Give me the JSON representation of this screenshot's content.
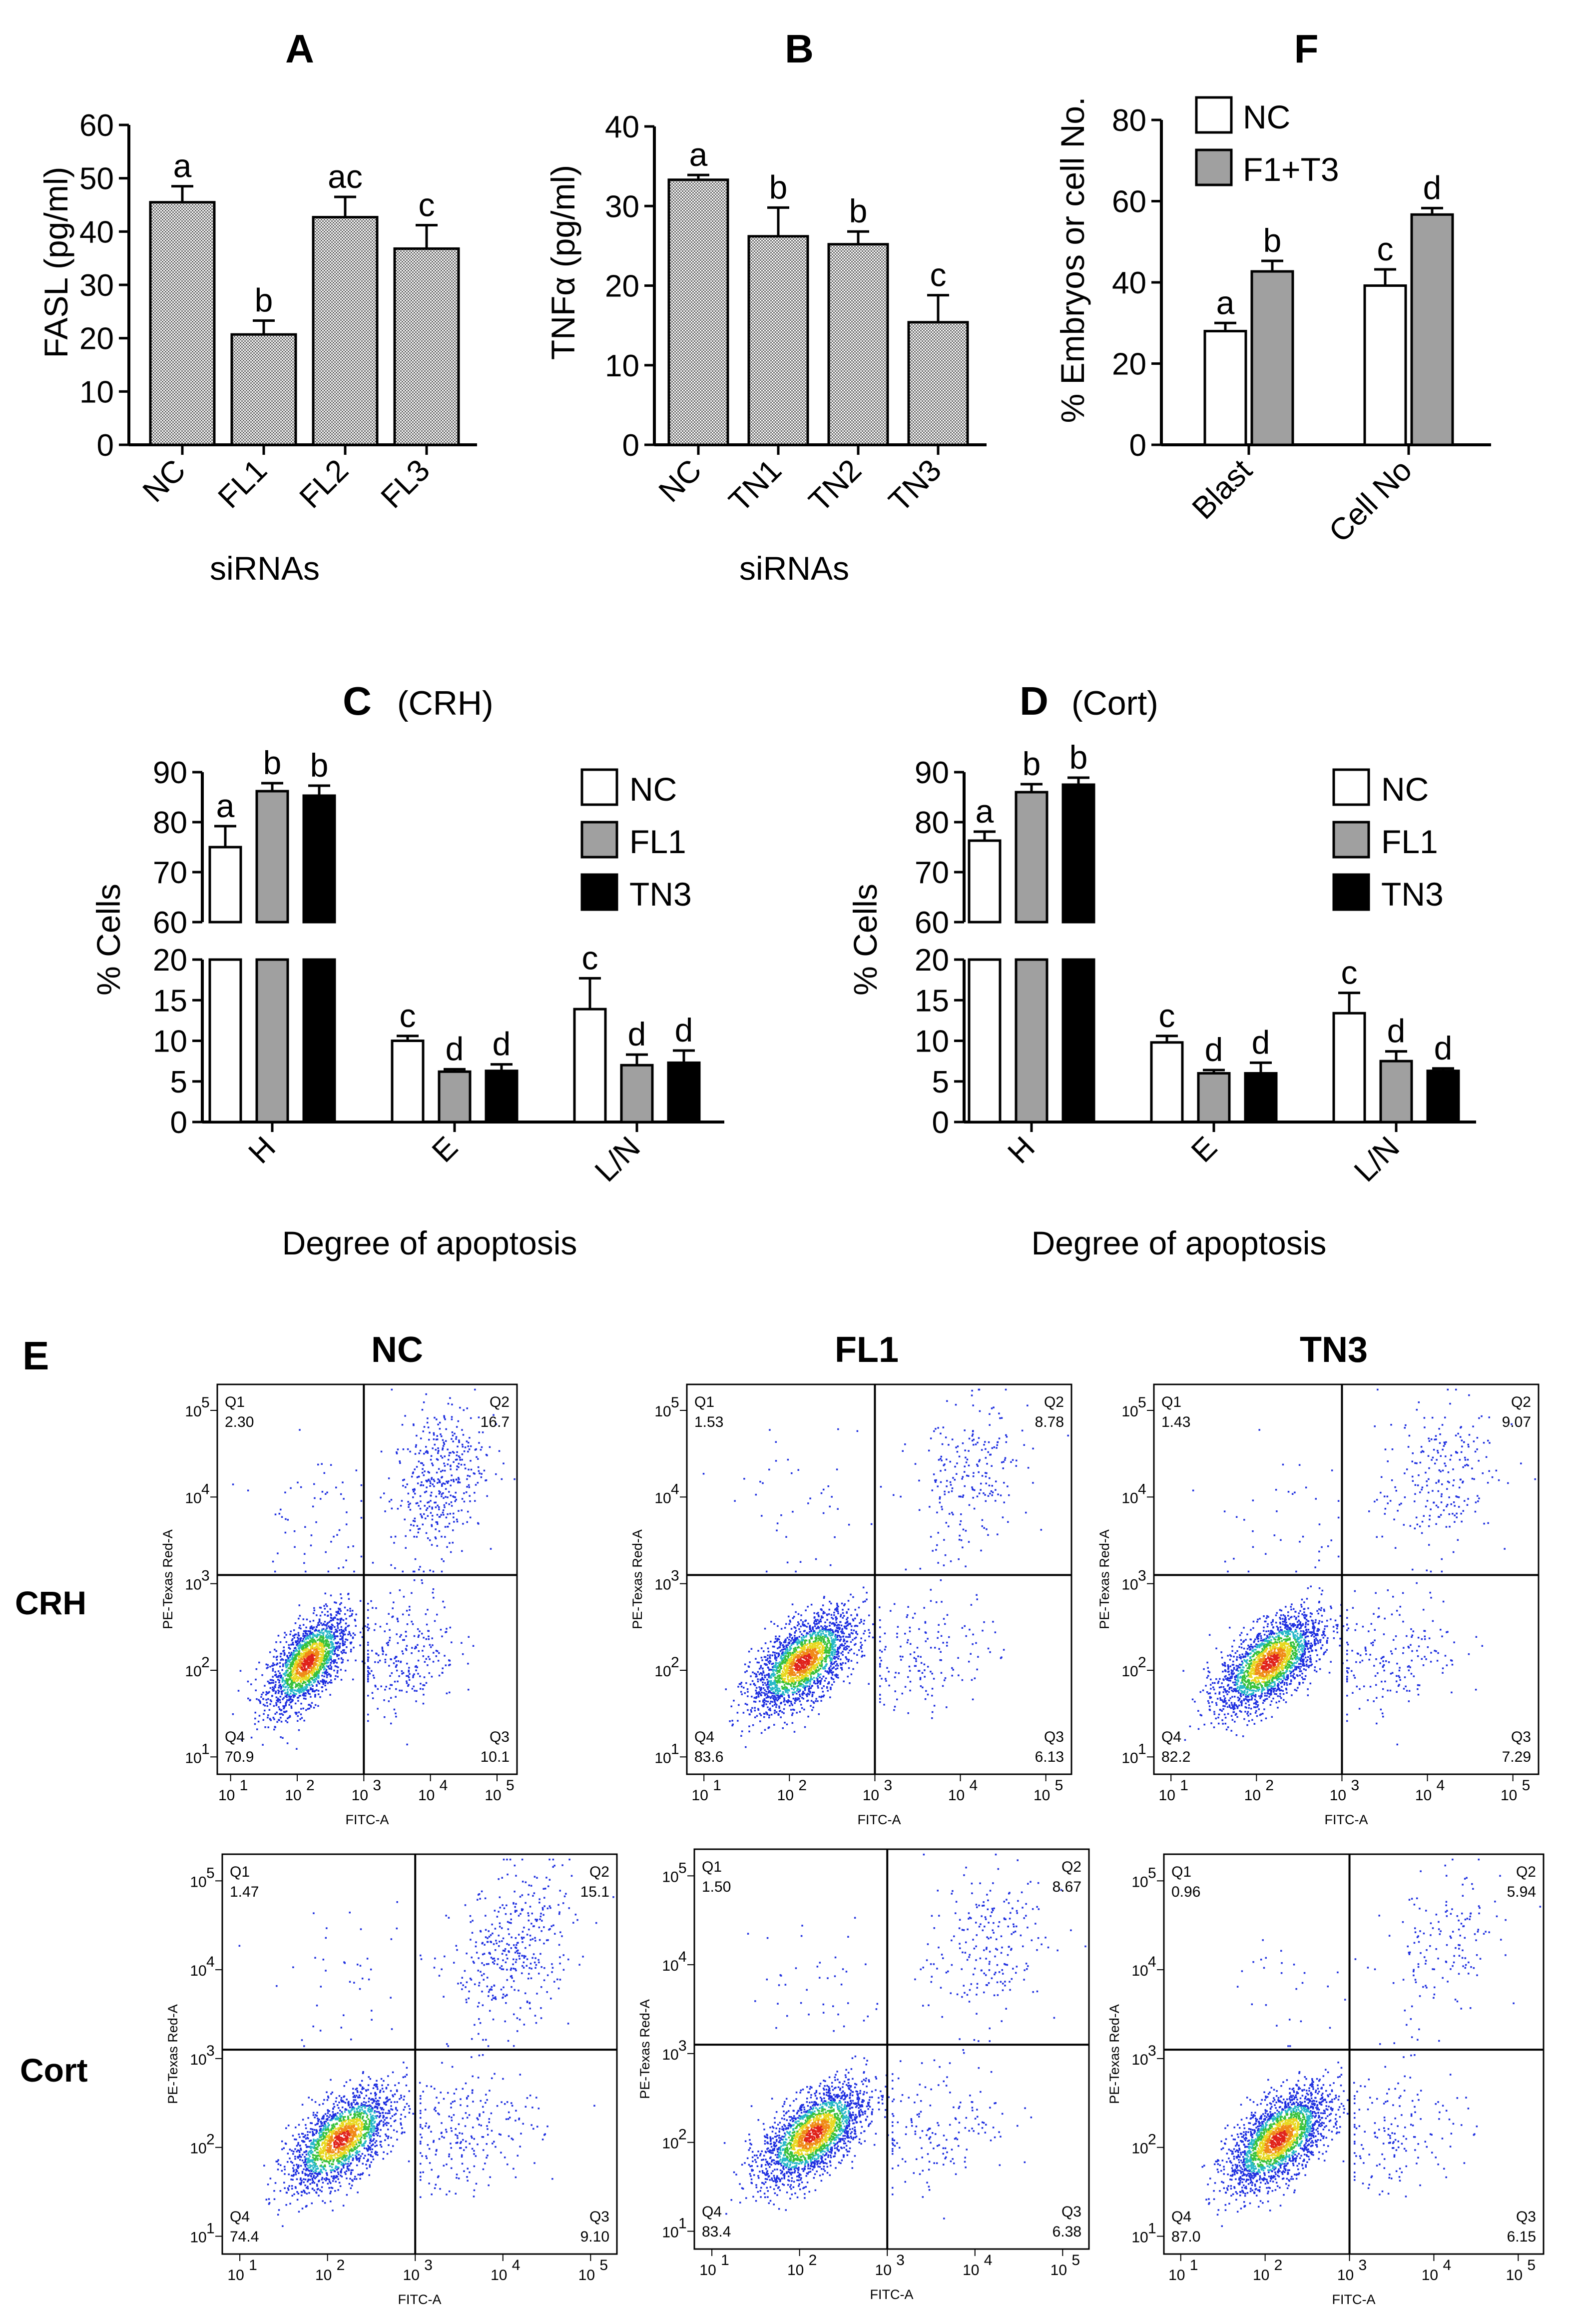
{
  "colors": {
    "hatch_fill": "#9a9a9a",
    "white_bar": "#ffffff",
    "gray_bar": "#a0a0a0",
    "black_bar": "#000000",
    "dot_blue": "#1e2fe0",
    "dot_cyan": "#27b8c8",
    "dot_green": "#39c23c",
    "dot_yellow": "#e8d820",
    "dot_orange": "#f08a18",
    "dot_red": "#e0231b"
  },
  "panelA": {
    "title": "A",
    "ylabel": "FASL (pg/ml)",
    "xlabel": "siRNAs",
    "chart_data": {
      "type": "bar",
      "categories": [
        "NC",
        "FL1",
        "FL2",
        "FL3"
      ],
      "values": [
        45.5,
        20.7,
        42.7,
        36.8
      ],
      "errors": [
        3.0,
        2.6,
        3.8,
        4.4
      ],
      "letters": [
        "a",
        "b",
        "ac",
        "c"
      ],
      "ylim": [
        0,
        60
      ],
      "yticks": [
        "0",
        "10",
        "20",
        "30",
        "40",
        "50",
        "60"
      ]
    }
  },
  "panelB": {
    "title": "B",
    "ylabel": "TNFα (pg/ml)",
    "xlabel": "siRNAs",
    "chart_data": {
      "type": "bar",
      "categories": [
        "NC",
        "TN1",
        "TN2",
        "TN3"
      ],
      "values": [
        33.3,
        26.2,
        25.2,
        15.4
      ],
      "errors": [
        0.6,
        3.6,
        1.6,
        3.4
      ],
      "letters": [
        "a",
        "b",
        "b",
        "c"
      ],
      "ylim": [
        0,
        40
      ],
      "yticks": [
        "0",
        "10",
        "20",
        "30",
        "40"
      ]
    }
  },
  "panelF": {
    "title": "F",
    "ylabel": "% Embryos or cell No.",
    "legend": [
      "NC",
      "F1+T3"
    ],
    "chart_data": {
      "type": "bar",
      "categories": [
        "Blast",
        "Cell No"
      ],
      "series": [
        {
          "name": "NC",
          "values": [
            28.0,
            39.2
          ],
          "errors": [
            2.0,
            4.0
          ],
          "letters": [
            "a",
            "c"
          ]
        },
        {
          "name": "F1+T3",
          "values": [
            42.7,
            56.7
          ],
          "errors": [
            2.6,
            1.6
          ],
          "letters": [
            "b",
            "d"
          ]
        }
      ],
      "ylim": [
        0,
        80
      ],
      "yticks": [
        "0",
        "20",
        "40",
        "60",
        "80"
      ]
    }
  },
  "panelC": {
    "title": "C",
    "subtitle": "(CRH)",
    "ylabel": "% Cells",
    "xlabel": "Degree of apoptosis",
    "legend": [
      "NC",
      "FL1",
      "TN3"
    ],
    "chart_data": {
      "type": "bar",
      "categories": [
        "H",
        "E",
        "L/N"
      ],
      "series": [
        {
          "name": "NC",
          "values": [
            75.0,
            10.0,
            13.9
          ],
          "errors": [
            4.2,
            0.6,
            3.8
          ],
          "letters": [
            "a",
            "c",
            "c"
          ]
        },
        {
          "name": "FL1",
          "values": [
            86.2,
            6.2,
            7.0
          ],
          "errors": [
            1.6,
            0.3,
            1.3
          ],
          "letters": [
            "b",
            "d",
            "d"
          ]
        },
        {
          "name": "TN3",
          "values": [
            85.3,
            6.3,
            7.3
          ],
          "errors": [
            2.0,
            0.8,
            1.5
          ],
          "letters": [
            "b",
            "d",
            "d"
          ]
        }
      ],
      "axis_break": {
        "lower": [
          0,
          20
        ],
        "upper": [
          60,
          90
        ]
      },
      "yticks_lower": [
        "0",
        "5",
        "10",
        "15",
        "20"
      ],
      "yticks_upper": [
        "60",
        "70",
        "80",
        "90"
      ]
    }
  },
  "panelD": {
    "title": "D",
    "subtitle": "(Cort)",
    "ylabel": "% Cells",
    "xlabel": "Degree of apoptosis",
    "legend": [
      "NC",
      "FL1",
      "TN3"
    ],
    "chart_data": {
      "type": "bar",
      "categories": [
        "H",
        "E",
        "L/N"
      ],
      "series": [
        {
          "name": "NC",
          "values": [
            76.3,
            9.8,
            13.4
          ],
          "errors": [
            1.8,
            0.8,
            2.5
          ],
          "letters": [
            "a",
            "c",
            "c"
          ]
        },
        {
          "name": "FL1",
          "values": [
            86.0,
            6.0,
            7.5
          ],
          "errors": [
            1.6,
            0.4,
            1.2
          ],
          "letters": [
            "b",
            "d",
            "d"
          ]
        },
        {
          "name": "TN3",
          "values": [
            87.5,
            6.0,
            6.3
          ],
          "errors": [
            1.4,
            1.3,
            0.3
          ],
          "letters": [
            "b",
            "d",
            "d"
          ]
        }
      ],
      "axis_break": {
        "lower": [
          0,
          20
        ],
        "upper": [
          60,
          90
        ]
      },
      "yticks_lower": [
        "0",
        "5",
        "10",
        "15",
        "20"
      ],
      "yticks_upper": [
        "60",
        "70",
        "80",
        "90"
      ]
    }
  },
  "panelE": {
    "title": "E",
    "columns": [
      "NC",
      "FL1",
      "TN3"
    ],
    "rows": [
      "CRH",
      "Cort"
    ],
    "x_axis_label": "FITC-A",
    "y_axis_label": "PE-Texas Red-A",
    "log_ticks": [
      "10",
      "10",
      "10",
      "10",
      "10"
    ],
    "log_exponents": [
      "1",
      "2",
      "3",
      "4",
      "5"
    ],
    "chart_data": {
      "type": "scatter",
      "axis_scale": "log",
      "axis_range_log10": [
        0.8,
        5.3
      ],
      "plots": [
        {
          "row": "CRH",
          "column": "NC",
          "gate_x_log10": 3.0,
          "gate_y_log10": 3.1,
          "quadrants": {
            "Q1": "2.30",
            "Q2": "16.7",
            "Q3": "10.1",
            "Q4": "70.9"
          }
        },
        {
          "row": "CRH",
          "column": "FL1",
          "gate_x_log10": 3.0,
          "gate_y_log10": 3.1,
          "quadrants": {
            "Q1": "1.53",
            "Q2": "8.78",
            "Q3": "6.13",
            "Q4": "83.6"
          }
        },
        {
          "row": "CRH",
          "column": "TN3",
          "gate_x_log10": 3.0,
          "gate_y_log10": 3.1,
          "quadrants": {
            "Q1": "1.43",
            "Q2": "9.07",
            "Q3": "7.29",
            "Q4": "82.2"
          }
        },
        {
          "row": "Cort",
          "column": "NC",
          "gate_x_log10": 3.0,
          "gate_y_log10": 3.1,
          "quadrants": {
            "Q1": "1.47",
            "Q2": "15.1",
            "Q3": "9.10",
            "Q4": "74.4"
          }
        },
        {
          "row": "Cort",
          "column": "FL1",
          "gate_x_log10": 3.0,
          "gate_y_log10": 3.1,
          "quadrants": {
            "Q1": "1.50",
            "Q2": "8.67",
            "Q3": "6.38",
            "Q4": "83.4"
          }
        },
        {
          "row": "Cort",
          "column": "TN3",
          "gate_x_log10": 3.0,
          "gate_y_log10": 3.1,
          "quadrants": {
            "Q1": "0.96",
            "Q2": "5.94",
            "Q3": "6.15",
            "Q4": "87.0"
          }
        }
      ]
    }
  }
}
